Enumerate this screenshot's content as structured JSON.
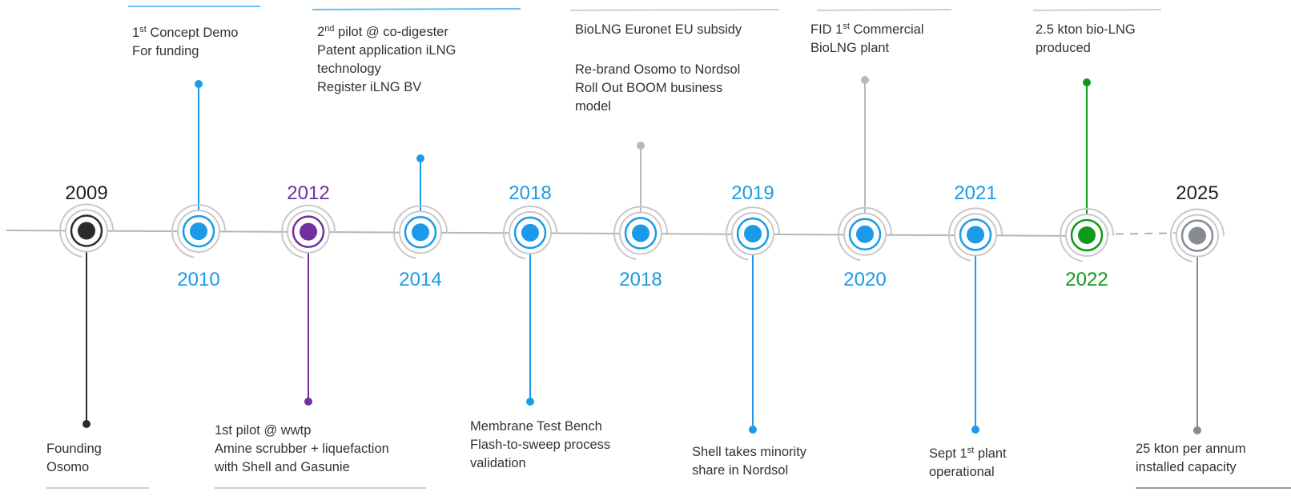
{
  "nodes": [
    {
      "year": "2009",
      "color": "#2b2b2b",
      "year_color": "#222222",
      "connector_color": "#2b2b2b",
      "label": [
        [
          "Founding",
          "Osomo"
        ]
      ]
    },
    {
      "year": "2010",
      "color": "#1a9ae8",
      "year_color": "#1a9ae8",
      "connector_color": "#1a9ae8",
      "label": [
        [
          [
            "1",
            {
              "sup": "st"
            },
            " Concept Demo"
          ],
          "For funding"
        ]
      ]
    },
    {
      "year": "2012",
      "color": "#7030a0",
      "year_color": "#7030a0",
      "connector_color": "#7030a0",
      "label": [
        [
          "1st pilot @ wwtp",
          "Amine scrubber + liquefaction",
          "with Shell and Gasunie"
        ]
      ]
    },
    {
      "year": "2014",
      "color": "#1a9ae8",
      "year_color": "#1a9ae8",
      "connector_color": "#1a9ae8",
      "label": [
        [
          [
            "2",
            {
              "sup": "nd"
            },
            " pilot @ co-digester"
          ],
          "Patent application iLNG",
          "technology",
          "Register iLNG BV"
        ]
      ]
    },
    {
      "year": "2018",
      "color": "#1a9ae8",
      "year_color": "#1a9ae8",
      "connector_color": "#1a9ae8",
      "label": [
        [
          "Membrane Test Bench",
          "Flash-to-sweep process",
          "validation"
        ]
      ]
    },
    {
      "year": "2018",
      "color": "#1a9ae8",
      "year_color": "#1a9ae8",
      "connector_color": "#b8b8b8",
      "label": [
        [
          "BioLNG Euronet EU subsidy"
        ],
        [
          "Re-brand Osomo to Nordsol",
          "Roll Out BOOM business",
          "model"
        ]
      ]
    },
    {
      "year": "2019",
      "color": "#1a9ae8",
      "year_color": "#1a9ae8",
      "connector_color": "#1a9ae8",
      "label": [
        [
          "Shell takes minority",
          "share in Nordsol"
        ]
      ]
    },
    {
      "year": "2020",
      "color": "#1a9ae8",
      "year_color": "#1a9ae8",
      "connector_color": "#b8b8b8",
      "label": [
        [
          [
            "FID 1",
            {
              "sup": "st"
            },
            " Commercial"
          ],
          "BioLNG plant"
        ]
      ]
    },
    {
      "year": "2021",
      "color": "#1a9ae8",
      "year_color": "#1a9ae8",
      "connector_color": "#1a9ae8",
      "label": [
        [
          [
            "Sept 1",
            {
              "sup": "st"
            },
            " plant"
          ],
          "operational"
        ]
      ]
    },
    {
      "year": "2022",
      "color": "#0e9a1a",
      "year_color": "#0e9a1a",
      "connector_color": "#0e9a1a",
      "label": [
        [
          "2.5 kton bio-LNG",
          "produced"
        ]
      ]
    },
    {
      "year": "2025",
      "color": "#868b93",
      "year_color": "#222222",
      "connector_color": "#868b93",
      "label": [
        [
          "25 kton per annum",
          "installed capacity"
        ]
      ]
    }
  ]
}
